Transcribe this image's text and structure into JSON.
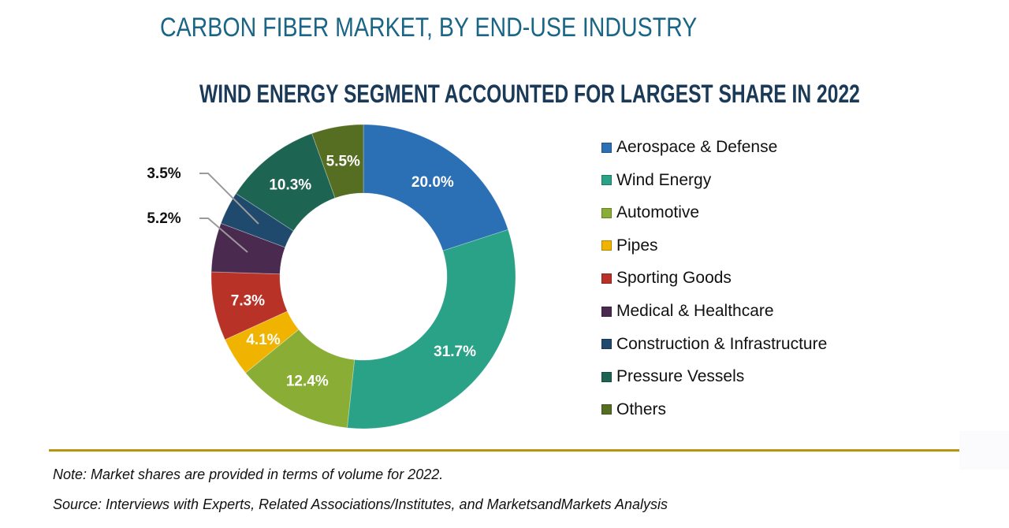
{
  "header": {
    "title": "CARBON FIBER MARKET, BY END-USE INDUSTRY",
    "subtitle": "WIND ENERGY SEGMENT ACCOUNTED FOR LARGEST SHARE IN 2022"
  },
  "footer": {
    "note": "Note: Market shares are provided in terms of volume for 2022.",
    "source": "Source: Interviews with Experts, Related Associations/Institutes, and MarketsandMarkets Analysis"
  },
  "colors": {
    "title": "#1a6585",
    "subtitle": "#1a3a58",
    "rule": "#b8950e"
  },
  "chart_data": {
    "type": "pie",
    "variant": "donut",
    "title": "CARBON FIBER MARKET, BY END-USE INDUSTRY",
    "subtitle": "WIND ENERGY SEGMENT ACCOUNTED FOR LARGEST SHARE IN 2022",
    "unit": "%",
    "legend_position": "right",
    "start_angle": "12 o'clock, clockwise",
    "slices": [
      {
        "name": "Aerospace & Defense",
        "value": 20.0,
        "label": "20.0%",
        "color": "#2b6fb4",
        "label_placement": "inside"
      },
      {
        "name": "Wind Energy",
        "value": 31.7,
        "label": "31.7%",
        "color": "#2aa287",
        "label_placement": "inside"
      },
      {
        "name": "Automotive",
        "value": 12.4,
        "label": "12.4%",
        "color": "#8aad35",
        "label_placement": "inside"
      },
      {
        "name": "Pipes",
        "value": 4.1,
        "label": "4.1%",
        "color": "#f0b400",
        "label_placement": "inside"
      },
      {
        "name": "Sporting Goods",
        "value": 7.3,
        "label": "7.3%",
        "color": "#b83227",
        "label_placement": "inside"
      },
      {
        "name": "Medical & Healthcare",
        "value": 5.2,
        "label": "5.2%",
        "color": "#4b2a50",
        "label_placement": "outside"
      },
      {
        "name": "Construction & Infrastructure",
        "value": 3.5,
        "label": "3.5%",
        "color": "#1f4a6e",
        "label_placement": "outside"
      },
      {
        "name": "Pressure Vessels",
        "value": 10.3,
        "label": "10.3%",
        "color": "#1e6452",
        "label_placement": "inside"
      },
      {
        "name": "Others",
        "value": 5.5,
        "label": "5.5%",
        "color": "#566e22",
        "label_placement": "inside"
      }
    ]
  }
}
